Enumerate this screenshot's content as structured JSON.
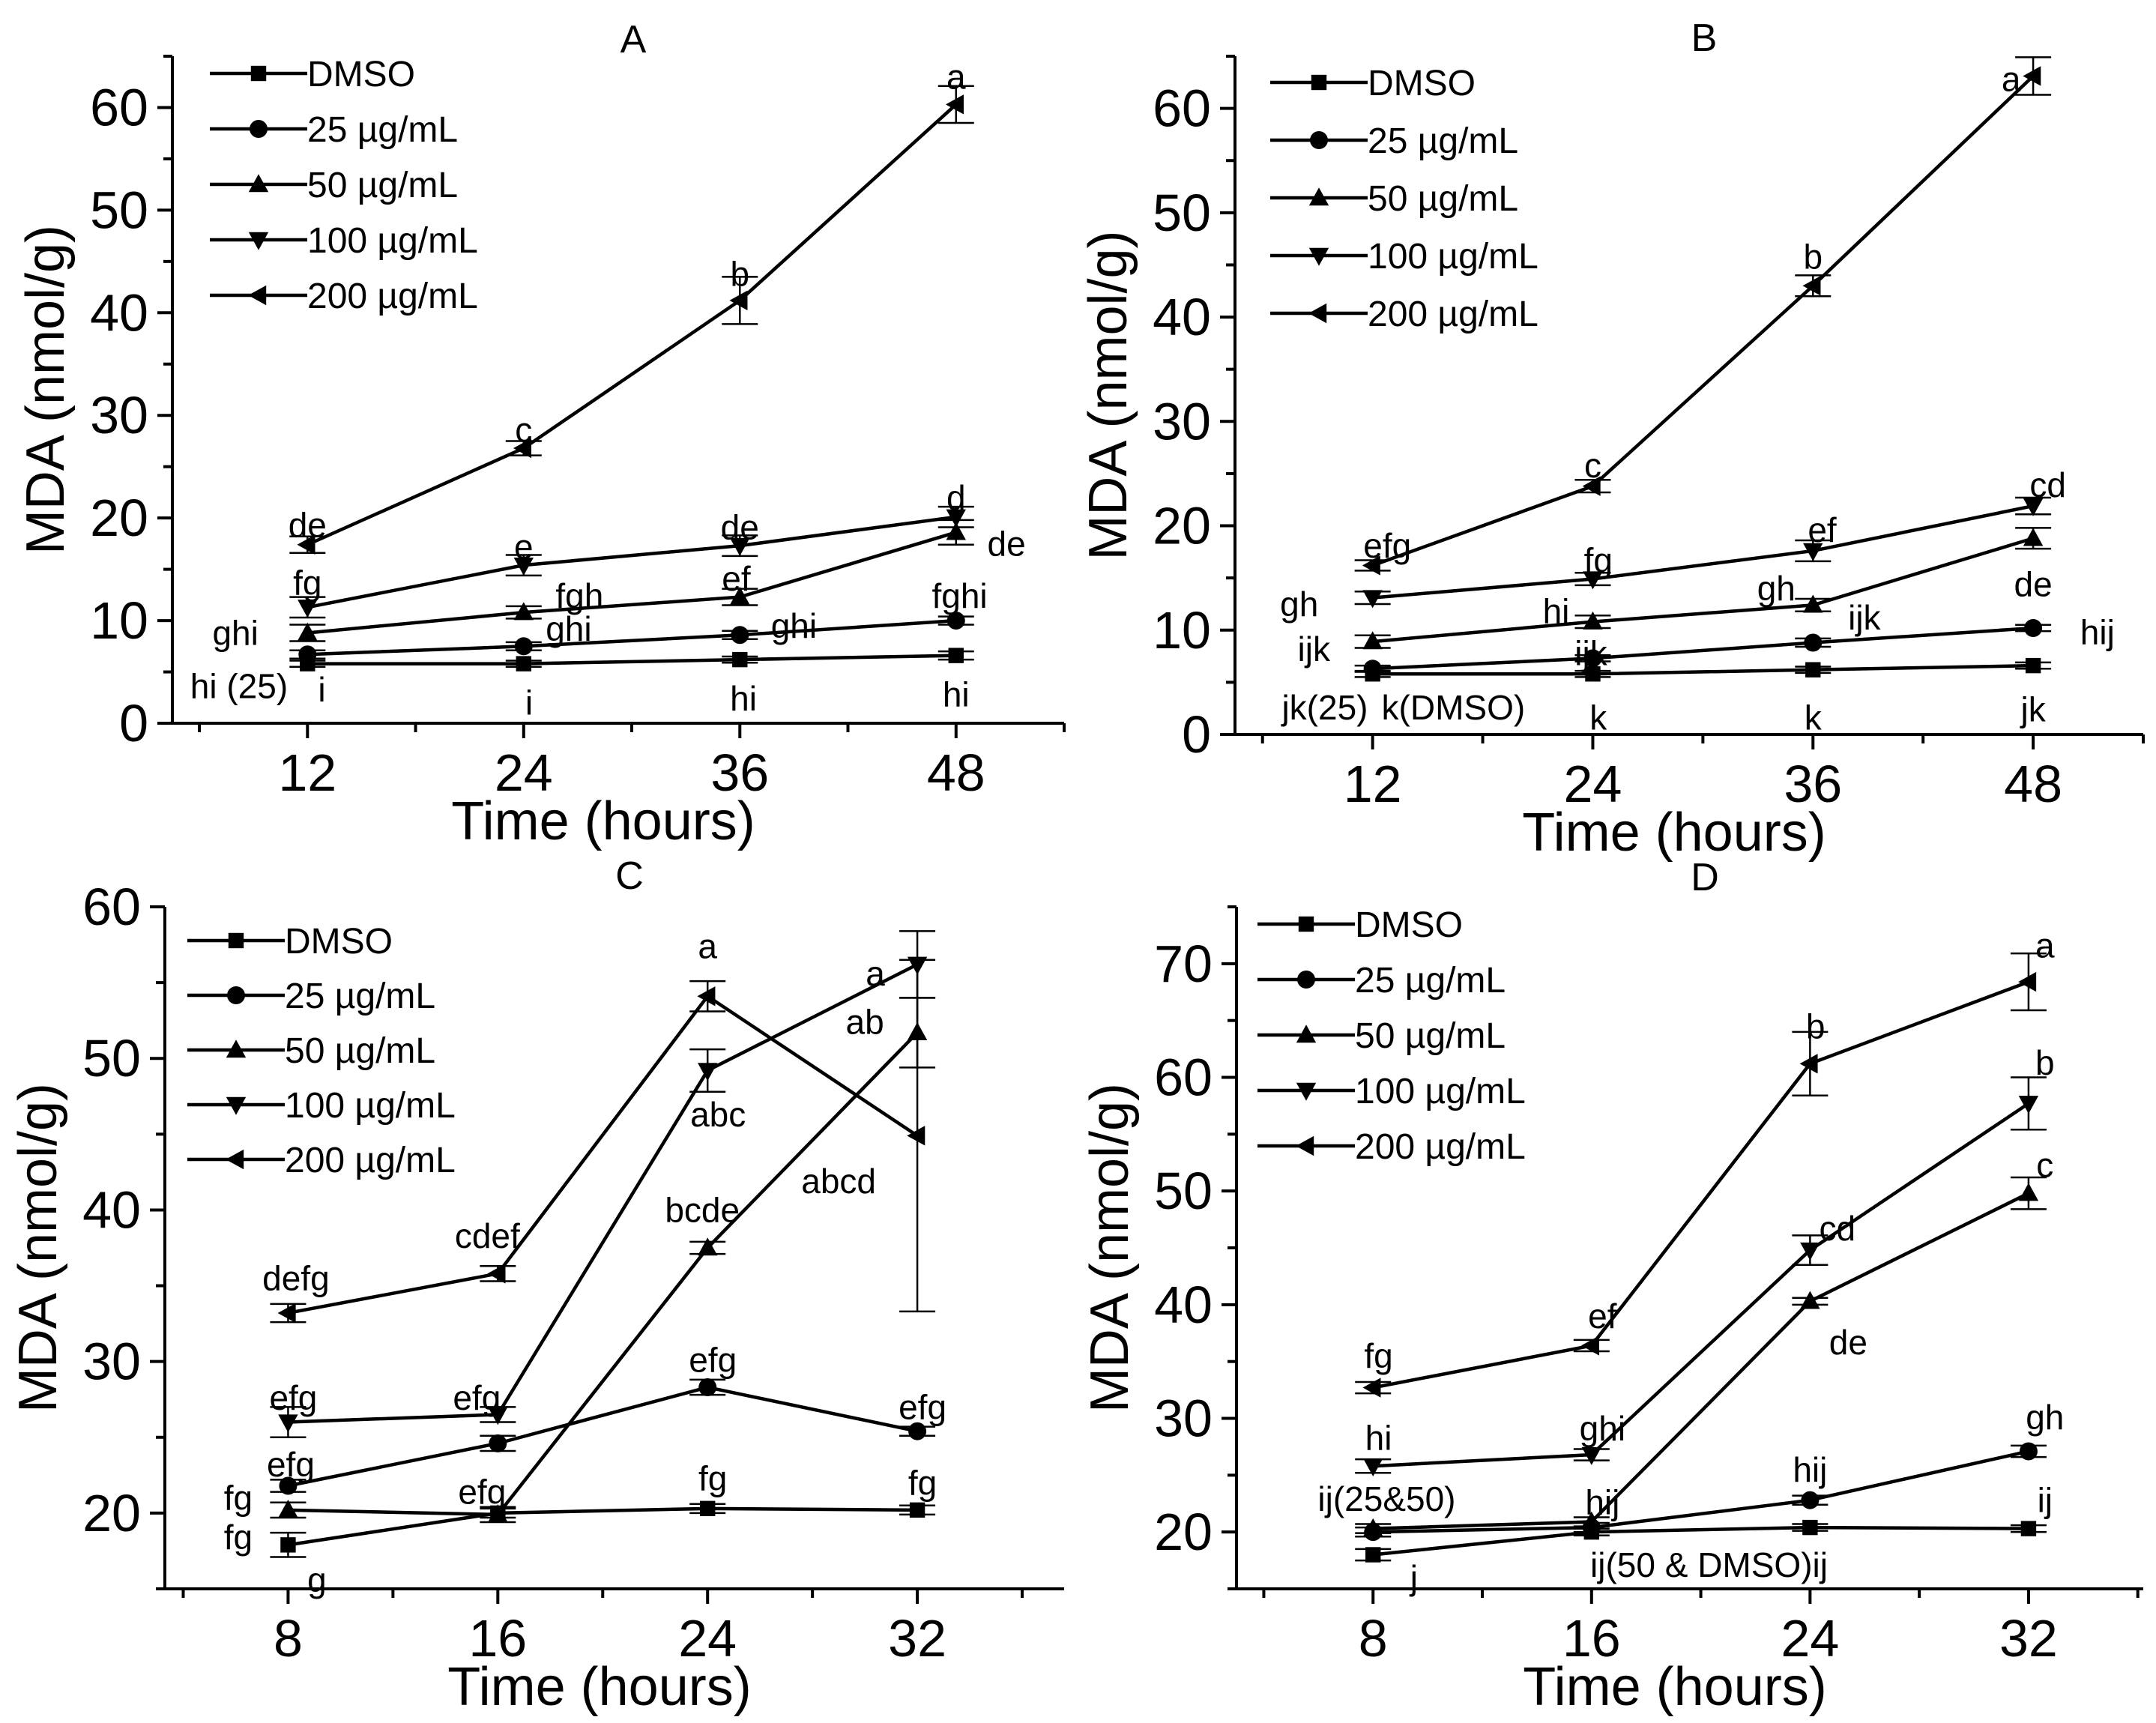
{
  "chart_data": [
    {
      "panel": "A",
      "type": "line",
      "title": "A",
      "xlabel": "Time (hours)",
      "ylabel": "MDA (nmol/g)",
      "x": [
        12,
        24,
        36,
        48
      ],
      "xlim": [
        4.5,
        54
      ],
      "ylim": [
        0,
        65
      ],
      "yticks": [
        0,
        10,
        20,
        30,
        40,
        50,
        60
      ],
      "legend": "top-left",
      "series": [
        {
          "name": "DMSO",
          "marker": "square",
          "values": [
            5.8,
            5.8,
            6.2,
            6.6
          ],
          "errors": [
            0.3,
            0.3,
            0.3,
            0.4
          ]
        },
        {
          "name": "25 µg/mL",
          "marker": "circle",
          "values": [
            6.7,
            7.5,
            8.6,
            10.0
          ],
          "errors": [
            0.4,
            0.4,
            0.4,
            0.4
          ]
        },
        {
          "name": "50 µg/mL",
          "marker": "triangle-up",
          "values": [
            8.8,
            10.8,
            12.3,
            18.6
          ],
          "errors": [
            0.8,
            0.6,
            0.8,
            1.2
          ]
        },
        {
          "name": "100 µg/mL",
          "marker": "triangle-down",
          "values": [
            11.3,
            15.4,
            17.3,
            20.1
          ],
          "errors": [
            1.0,
            1.0,
            1.0,
            1.0
          ]
        },
        {
          "name": "200 µg/mL",
          "marker": "triangle-left",
          "values": [
            17.4,
            26.8,
            41.2,
            60.3
          ],
          "errors": [
            0.8,
            0.7,
            2.3,
            1.8
          ]
        }
      ],
      "annotations": [
        {
          "text": "a",
          "x": 48,
          "y": 63.0
        },
        {
          "text": "b",
          "x": 36,
          "y": 43.8
        },
        {
          "text": "c",
          "x": 24,
          "y": 28.6
        },
        {
          "text": "de",
          "x": 12,
          "y": 19.3
        },
        {
          "text": "e",
          "x": 24,
          "y": 17.2
        },
        {
          "text": "de",
          "x": 36,
          "y": 19.1
        },
        {
          "text": "d",
          "x": 48,
          "y": 22.0
        },
        {
          "text": "de",
          "x": 50.8,
          "y": 17.5
        },
        {
          "text": "fg",
          "x": 12,
          "y": 13.7
        },
        {
          "text": "fgh",
          "x": 27.1,
          "y": 12.4
        },
        {
          "text": "ef",
          "x": 35.8,
          "y": 14.1
        },
        {
          "text": "fghi",
          "x": 48.2,
          "y": 12.4
        },
        {
          "text": "ghi",
          "x": 8.0,
          "y": 8.8
        },
        {
          "text": "ghi",
          "x": 26.5,
          "y": 9.2
        },
        {
          "text": "ghi",
          "x": 39.0,
          "y": 9.5
        },
        {
          "text": "hi (25)",
          "x": 8.2,
          "y": 3.6
        },
        {
          "text": "i",
          "x": 12.8,
          "y": 3.3
        },
        {
          "text": "i",
          "x": 24.3,
          "y": 2.0
        },
        {
          "text": "hi",
          "x": 36.2,
          "y": 2.4
        },
        {
          "text": "hi",
          "x": 48.0,
          "y": 2.8
        }
      ]
    },
    {
      "panel": "B",
      "type": "line",
      "title": "B",
      "xlabel": "Time (hours)",
      "ylabel": "MDA (nmol/g)",
      "x": [
        12,
        24,
        36,
        48
      ],
      "xlim": [
        4.5,
        54
      ],
      "ylim": [
        0,
        65
      ],
      "yticks": [
        0,
        10,
        20,
        30,
        40,
        50,
        60
      ],
      "legend": "top-left",
      "series": [
        {
          "name": "DMSO",
          "marker": "square",
          "values": [
            5.8,
            5.8,
            6.2,
            6.6
          ],
          "errors": [
            0.3,
            0.3,
            0.3,
            0.3
          ]
        },
        {
          "name": "25 µg/mL",
          "marker": "circle",
          "values": [
            6.3,
            7.3,
            8.8,
            10.2
          ],
          "errors": [
            0.3,
            0.3,
            0.4,
            0.3
          ]
        },
        {
          "name": "50 µg/mL",
          "marker": "triangle-up",
          "values": [
            8.9,
            10.8,
            12.4,
            18.8
          ],
          "errors": [
            0.6,
            0.6,
            0.6,
            1.0
          ]
        },
        {
          "name": "100 µg/mL",
          "marker": "triangle-down",
          "values": [
            13.1,
            14.9,
            17.6,
            21.9
          ],
          "errors": [
            0.6,
            0.6,
            1.0,
            0.8
          ]
        },
        {
          "name": "200 µg/mL",
          "marker": "triangle-left",
          "values": [
            16.2,
            23.8,
            43.0,
            63.1
          ],
          "errors": [
            0.5,
            0.6,
            1.0,
            1.8
          ]
        }
      ],
      "annotations": [
        {
          "text": "a",
          "x": 46.8,
          "y": 62.8
        },
        {
          "text": "b",
          "x": 36,
          "y": 45.8
        },
        {
          "text": "c",
          "x": 24,
          "y": 25.8
        },
        {
          "text": "efg",
          "x": 12.8,
          "y": 18.1
        },
        {
          "text": "fg",
          "x": 24.3,
          "y": 16.7
        },
        {
          "text": "ef",
          "x": 36.5,
          "y": 19.6
        },
        {
          "text": "cd",
          "x": 48.8,
          "y": 23.9
        },
        {
          "text": "gh",
          "x": 8.0,
          "y": 12.5
        },
        {
          "text": "hi",
          "x": 22.0,
          "y": 11.8
        },
        {
          "text": "gh",
          "x": 34.0,
          "y": 14.0
        },
        {
          "text": "de",
          "x": 48.0,
          "y": 14.4
        },
        {
          "text": "ijk",
          "x": 8.8,
          "y": 8.2
        },
        {
          "text": "ijk",
          "x": 23.9,
          "y": 7.8
        },
        {
          "text": "ijk",
          "x": 38.8,
          "y": 11.2
        },
        {
          "text": "hij",
          "x": 51.5,
          "y": 9.8
        },
        {
          "text": "jk(25)",
          "x": 9.4,
          "y": 2.6
        },
        {
          "text": "k(DMSO)",
          "x": 16.4,
          "y": 2.6
        },
        {
          "text": "k",
          "x": 24.3,
          "y": 1.6
        },
        {
          "text": "k",
          "x": 36.0,
          "y": 1.6
        },
        {
          "text": "jk",
          "x": 48.0,
          "y": 2.4
        }
      ]
    },
    {
      "panel": "C",
      "type": "line",
      "title": "C",
      "xlabel": "Time (hours)",
      "ylabel": "MDA (nmol/g)",
      "x": [
        8,
        16,
        24,
        32
      ],
      "xlim": [
        3.3,
        37.6
      ],
      "ylim": [
        15,
        60
      ],
      "yticks": [
        20,
        30,
        40,
        50,
        60
      ],
      "legend": "top-left",
      "series": [
        {
          "name": "DMSO",
          "marker": "square",
          "values": [
            17.9,
            20.0,
            20.3,
            20.2
          ],
          "errors": [
            0.8,
            0.3,
            0.3,
            0.3
          ]
        },
        {
          "name": "25 µg/mL",
          "marker": "circle",
          "values": [
            21.8,
            24.6,
            28.3,
            25.4
          ],
          "errors": [
            0.4,
            0.5,
            0.5,
            0.3
          ]
        },
        {
          "name": "50 µg/mL",
          "marker": "triangle-up",
          "values": [
            20.2,
            19.9,
            37.5,
            51.7
          ],
          "errors": [
            0.5,
            0.5,
            0.4,
            2.3
          ]
        },
        {
          "name": "100 µg/mL",
          "marker": "triangle-down",
          "values": [
            26.0,
            26.5,
            49.2,
            56.2
          ],
          "errors": [
            1.0,
            0.5,
            1.4,
            2.2
          ]
        },
        {
          "name": "200 µg/mL",
          "marker": "triangle-left",
          "values": [
            33.2,
            35.8,
            54.1,
            44.9
          ],
          "errors": [
            0.6,
            0.5,
            1.0,
            11.6
          ]
        }
      ],
      "annotations": [
        {
          "text": "a",
          "x": 24,
          "y": 57.4
        },
        {
          "text": "a",
          "x": 30.4,
          "y": 55.6
        },
        {
          "text": "ab",
          "x": 30.0,
          "y": 52.4
        },
        {
          "text": "abc",
          "x": 24.4,
          "y": 46.3
        },
        {
          "text": "abcd",
          "x": 29.0,
          "y": 41.9
        },
        {
          "text": "bcde",
          "x": 23.8,
          "y": 40.0
        },
        {
          "text": "cdef",
          "x": 15.6,
          "y": 38.3
        },
        {
          "text": "defg",
          "x": 8.3,
          "y": 35.5
        },
        {
          "text": "efg",
          "x": 8.2,
          "y": 27.6
        },
        {
          "text": "efg",
          "x": 15.2,
          "y": 27.6
        },
        {
          "text": "efg",
          "x": 24.2,
          "y": 30.1
        },
        {
          "text": "efg",
          "x": 32.2,
          "y": 27.0
        },
        {
          "text": "efg",
          "x": 8.1,
          "y": 23.2
        },
        {
          "text": "fg",
          "x": 6.1,
          "y": 21.0
        },
        {
          "text": "fg",
          "x": 6.1,
          "y": 18.4
        },
        {
          "text": "g",
          "x": 9.1,
          "y": 15.6
        },
        {
          "text": "efg",
          "x": 15.4,
          "y": 21.4
        },
        {
          "text": "fg",
          "x": 24.2,
          "y": 22.3
        },
        {
          "text": "fg",
          "x": 32.2,
          "y": 22.0
        }
      ]
    },
    {
      "panel": "D",
      "type": "line",
      "title": "D",
      "xlabel": "Time (hours)",
      "ylabel": "MDA (nmol/g)",
      "x": [
        8,
        16,
        24,
        32
      ],
      "xlim": [
        3.0,
        36.2
      ],
      "ylim": [
        15,
        75
      ],
      "yticks": [
        20,
        30,
        40,
        50,
        60,
        70
      ],
      "legend": "top-left",
      "series": [
        {
          "name": "DMSO",
          "marker": "square",
          "values": [
            18.0,
            20.0,
            20.4,
            20.3
          ],
          "errors": [
            0.5,
            0.3,
            0.3,
            0.3
          ]
        },
        {
          "name": "25 µg/mL",
          "marker": "circle",
          "values": [
            20.0,
            20.4,
            22.8,
            27.1
          ],
          "errors": [
            0.4,
            0.4,
            0.4,
            0.5
          ]
        },
        {
          "name": "50 µg/mL",
          "marker": "triangle-up",
          "values": [
            20.3,
            20.9,
            40.3,
            49.8
          ],
          "errors": [
            0.4,
            0.4,
            0.3,
            1.4
          ]
        },
        {
          "name": "100 µg/mL",
          "marker": "triangle-down",
          "values": [
            25.8,
            26.8,
            44.8,
            57.7
          ],
          "errors": [
            0.6,
            0.5,
            1.3,
            2.3
          ]
        },
        {
          "name": "200 µg/mL",
          "marker": "triangle-left",
          "values": [
            32.7,
            36.4,
            61.2,
            68.4
          ],
          "errors": [
            0.5,
            0.5,
            2.8,
            2.5
          ]
        }
      ],
      "annotations": [
        {
          "text": "a",
          "x": 32.6,
          "y": 71.6
        },
        {
          "text": "b",
          "x": 24.2,
          "y": 64.5
        },
        {
          "text": "b",
          "x": 32.6,
          "y": 61.3
        },
        {
          "text": "c",
          "x": 32.6,
          "y": 52.3
        },
        {
          "text": "cd",
          "x": 25.0,
          "y": 46.7
        },
        {
          "text": "de",
          "x": 25.4,
          "y": 36.7
        },
        {
          "text": "fg",
          "x": 8.2,
          "y": 35.5
        },
        {
          "text": "ef",
          "x": 16.4,
          "y": 39.0
        },
        {
          "text": "hi",
          "x": 8.2,
          "y": 28.3
        },
        {
          "text": "ghi",
          "x": 16.4,
          "y": 29.1
        },
        {
          "text": "gh",
          "x": 32.6,
          "y": 30.1
        },
        {
          "text": "hij",
          "x": 24.0,
          "y": 25.5
        },
        {
          "text": "ij(25&50)",
          "x": 8.5,
          "y": 22.9
        },
        {
          "text": "hij",
          "x": 16.4,
          "y": 22.6
        },
        {
          "text": "ij",
          "x": 32.6,
          "y": 22.8
        },
        {
          "text": "ij(50 & DMSO)ij",
          "x": 20.3,
          "y": 17.1
        },
        {
          "text": "j",
          "x": 9.5,
          "y": 16.0
        }
      ]
    }
  ]
}
